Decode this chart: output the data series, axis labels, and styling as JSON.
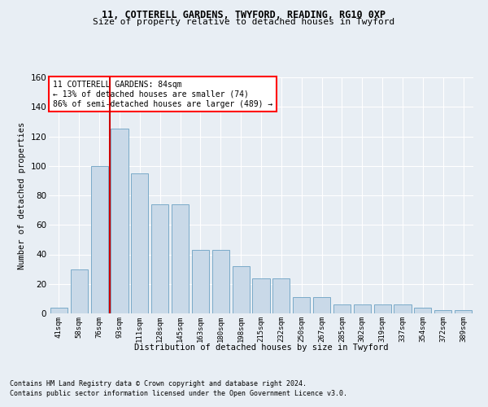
{
  "title_line1": "11, COTTERELL GARDENS, TWYFORD, READING, RG10 0XP",
  "title_line2": "Size of property relative to detached houses in Twyford",
  "xlabel": "Distribution of detached houses by size in Twyford",
  "ylabel": "Number of detached properties",
  "categories": [
    "41sqm",
    "58sqm",
    "76sqm",
    "93sqm",
    "111sqm",
    "128sqm",
    "145sqm",
    "163sqm",
    "180sqm",
    "198sqm",
    "215sqm",
    "232sqm",
    "250sqm",
    "267sqm",
    "285sqm",
    "302sqm",
    "319sqm",
    "337sqm",
    "354sqm",
    "372sqm",
    "389sqm"
  ],
  "values": [
    4,
    30,
    100,
    125,
    95,
    74,
    74,
    43,
    43,
    32,
    24,
    24,
    11,
    11,
    6,
    6,
    6,
    6,
    4,
    2,
    2
  ],
  "bar_color": "#c9d9e8",
  "bar_edge_color": "#7aaac8",
  "red_line_x": 2.5,
  "annotation_line1": "11 COTTERELL GARDENS: 84sqm",
  "annotation_line2": "← 13% of detached houses are smaller (74)",
  "annotation_line3": "86% of semi-detached houses are larger (489) →",
  "annotation_box_color": "white",
  "annotation_box_edge_color": "red",
  "red_line_color": "#cc0000",
  "ylim": [
    0,
    160
  ],
  "yticks": [
    0,
    20,
    40,
    60,
    80,
    100,
    120,
    140,
    160
  ],
  "footer_line1": "Contains HM Land Registry data © Crown copyright and database right 2024.",
  "footer_line2": "Contains public sector information licensed under the Open Government Licence v3.0.",
  "background_color": "#e8eef4",
  "plot_bg_color": "#e8eef4",
  "grid_color": "#ffffff",
  "title1_fontsize": 8.5,
  "title2_fontsize": 8.0,
  "ylabel_fontsize": 7.5,
  "xtick_fontsize": 6.5,
  "ytick_fontsize": 7.5,
  "annot_fontsize": 7.0,
  "xlabel_fontsize": 7.5,
  "footer_fontsize": 6.0
}
